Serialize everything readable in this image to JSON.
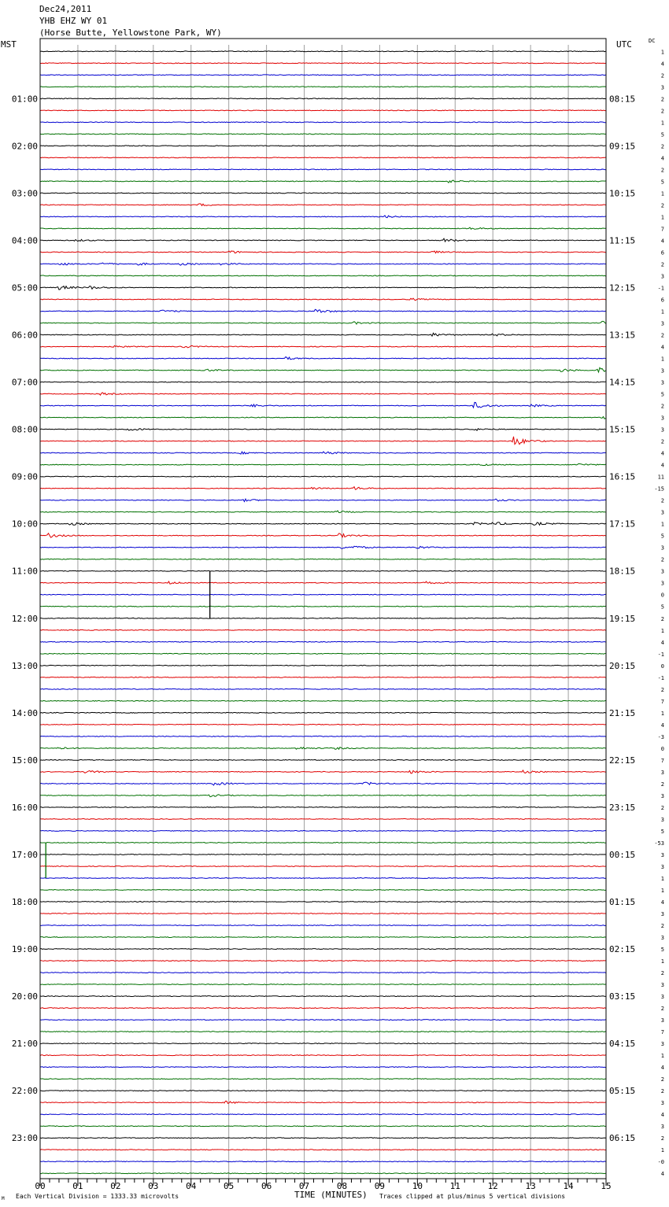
{
  "header": {
    "date": "Dec24,2011",
    "station": "YHB EHZ WY 01",
    "location": "(Horse Butte, Yellowstone Park, WY)"
  },
  "labels": {
    "left_tz": "MST",
    "right_tz": "UTC",
    "dc_label": "DC"
  },
  "footer": {
    "scale": "Each Vertical Division = 1333.33 microvolts",
    "clip_note": "Traces clipped at plus/minus 5 vertical divisions",
    "corner_mark": "M"
  },
  "colors": {
    "trace_cycle": [
      "#000000",
      "#e00000",
      "#0000d0",
      "#007000"
    ],
    "grid": "#a0a0a0",
    "frame": "#000000"
  },
  "chart_data": {
    "type": "line",
    "title": "",
    "xlabel": "TIME (MINUTES)",
    "xlim": [
      0,
      15
    ],
    "x_ticks": [
      "00",
      "01",
      "02",
      "03",
      "04",
      "05",
      "06",
      "07",
      "08",
      "09",
      "10",
      "11",
      "12",
      "13",
      "14",
      "15"
    ],
    "trace_count": 96,
    "minutes_per_trace": 15,
    "left_hour_labels": [
      "01:00",
      "02:00",
      "03:00",
      "04:00",
      "05:00",
      "06:00",
      "07:00",
      "08:00",
      "09:00",
      "10:00",
      "11:00",
      "12:00",
      "13:00",
      "14:00",
      "15:00",
      "16:00",
      "17:00",
      "18:00",
      "19:00",
      "20:00",
      "21:00",
      "22:00",
      "23:00"
    ],
    "right_hour_labels": [
      "08:15",
      "09:15",
      "10:15",
      "11:15",
      "12:15",
      "13:15",
      "14:15",
      "15:15",
      "16:15",
      "17:15",
      "18:15",
      "19:15",
      "20:15",
      "21:15",
      "22:15",
      "23:15",
      "00:15",
      "01:15",
      "02:15",
      "03:15",
      "04:15",
      "05:15",
      "06:15"
    ],
    "dc_offsets": [
      "1",
      "4",
      "2",
      "3",
      "2",
      "2",
      "1",
      "5",
      "2",
      "4",
      "2",
      "5",
      "1",
      "2",
      "1",
      "7",
      "4",
      "6",
      "2",
      "3",
      "-1",
      "6",
      "1",
      "3",
      "2",
      "4",
      "1",
      "3",
      "3",
      "5",
      "2",
      "3",
      "3",
      "2",
      "4",
      "4",
      "11",
      "-15",
      "2",
      "3",
      "1",
      "5",
      "3",
      "2",
      "3",
      "3",
      "0",
      "5",
      "2",
      "1",
      "4",
      "-1",
      "0",
      "-1",
      "2",
      "7",
      "1",
      "4",
      "-3",
      "0",
      "7",
      "3",
      "2",
      "3",
      "2",
      "3",
      "5",
      "-53",
      "3",
      "3",
      "1",
      "1",
      "4",
      "3",
      "2",
      "3",
      "5",
      "1",
      "2",
      "3",
      "3",
      "2",
      "3",
      "7",
      "3",
      "1",
      "4",
      "2",
      "2",
      "3",
      "4",
      "3",
      "2",
      "1",
      "-0",
      "4"
    ],
    "events": [
      {
        "trace": 11,
        "minute": 10.8,
        "amp": 1.6
      },
      {
        "trace": 13,
        "minute": 4.2,
        "amp": 1.3
      },
      {
        "trace": 14,
        "minute": 9.1,
        "amp": 1.3
      },
      {
        "trace": 15,
        "minute": 11.4,
        "amp": 1.3
      },
      {
        "trace": 16,
        "minute": 0.9,
        "amp": 1.3
      },
      {
        "trace": 16,
        "minute": 10.7,
        "amp": 2.0
      },
      {
        "trace": 17,
        "minute": 5.0,
        "amp": 1.5
      },
      {
        "trace": 17,
        "minute": 10.4,
        "amp": 1.3
      },
      {
        "trace": 18,
        "minute": 0.5,
        "amp": 1.6
      },
      {
        "trace": 18,
        "minute": 1.6,
        "amp": 1.6
      },
      {
        "trace": 18,
        "minute": 2.6,
        "amp": 1.3
      },
      {
        "trace": 18,
        "minute": 3.7,
        "amp": 1.3
      },
      {
        "trace": 18,
        "minute": 4.8,
        "amp": 1.3
      },
      {
        "trace": 20,
        "minute": 0.5,
        "amp": 2.5
      },
      {
        "trace": 20,
        "minute": 1.3,
        "amp": 1.8
      },
      {
        "trace": 21,
        "minute": 9.8,
        "amp": 1.3
      },
      {
        "trace": 22,
        "minute": 3.2,
        "amp": 1.3
      },
      {
        "trace": 22,
        "minute": 7.3,
        "amp": 2.8
      },
      {
        "trace": 23,
        "minute": 8.3,
        "amp": 1.3
      },
      {
        "trace": 23,
        "minute": 14.9,
        "amp": 3.0
      },
      {
        "trace": 24,
        "minute": 10.4,
        "amp": 2.0
      },
      {
        "trace": 24,
        "minute": 12.0,
        "amp": 1.5
      },
      {
        "trace": 25,
        "minute": 1.9,
        "amp": 1.3
      },
      {
        "trace": 25,
        "minute": 3.8,
        "amp": 1.5
      },
      {
        "trace": 26,
        "minute": 6.5,
        "amp": 1.5
      },
      {
        "trace": 27,
        "minute": 4.4,
        "amp": 1.3
      },
      {
        "trace": 27,
        "minute": 13.8,
        "amp": 1.8
      },
      {
        "trace": 27,
        "minute": 14.8,
        "amp": 3.5
      },
      {
        "trace": 29,
        "minute": 1.6,
        "amp": 1.3
      },
      {
        "trace": 30,
        "minute": 5.6,
        "amp": 1.5
      },
      {
        "trace": 30,
        "minute": 11.5,
        "amp": 4.0
      },
      {
        "trace": 30,
        "minute": 13.0,
        "amp": 1.3
      },
      {
        "trace": 31,
        "minute": 14.9,
        "amp": 1.5
      },
      {
        "trace": 32,
        "minute": 2.3,
        "amp": 1.8
      },
      {
        "trace": 32,
        "minute": 11.5,
        "amp": 1.3
      },
      {
        "trace": 33,
        "minute": 12.5,
        "amp": 7.0
      },
      {
        "trace": 34,
        "minute": 5.3,
        "amp": 1.3
      },
      {
        "trace": 34,
        "minute": 7.5,
        "amp": 1.8
      },
      {
        "trace": 35,
        "minute": 11.6,
        "amp": 1.3
      },
      {
        "trace": 35,
        "minute": 14.2,
        "amp": 1.5
      },
      {
        "trace": 37,
        "minute": 7.2,
        "amp": 1.3
      },
      {
        "trace": 37,
        "minute": 8.3,
        "amp": 1.8
      },
      {
        "trace": 38,
        "minute": 5.4,
        "amp": 1.3
      },
      {
        "trace": 38,
        "minute": 12.0,
        "amp": 1.5
      },
      {
        "trace": 39,
        "minute": 7.8,
        "amp": 1.5
      },
      {
        "trace": 40,
        "minute": 0.8,
        "amp": 1.6
      },
      {
        "trace": 40,
        "minute": 11.5,
        "amp": 1.5
      },
      {
        "trace": 40,
        "minute": 12.0,
        "amp": 2.0
      },
      {
        "trace": 40,
        "minute": 13.1,
        "amp": 2.0
      },
      {
        "trace": 41,
        "minute": 0.2,
        "amp": 2.5
      },
      {
        "trace": 41,
        "minute": 7.9,
        "amp": 2.5
      },
      {
        "trace": 42,
        "minute": 7.9,
        "amp": 1.8
      },
      {
        "trace": 42,
        "minute": 8.3,
        "amp": 1.5
      },
      {
        "trace": 42,
        "minute": 9.9,
        "amp": 2.0
      },
      {
        "trace": 45,
        "minute": 3.4,
        "amp": 1.3
      },
      {
        "trace": 45,
        "minute": 10.2,
        "amp": 1.3
      },
      {
        "trace": 59,
        "minute": 0.4,
        "amp": 1.6
      },
      {
        "trace": 59,
        "minute": 6.8,
        "amp": 1.5
      },
      {
        "trace": 59,
        "minute": 7.8,
        "amp": 1.3
      },
      {
        "trace": 61,
        "minute": 1.2,
        "amp": 1.5
      },
      {
        "trace": 61,
        "minute": 9.8,
        "amp": 1.8
      },
      {
        "trace": 61,
        "minute": 12.8,
        "amp": 1.5
      },
      {
        "trace": 62,
        "minute": 4.6,
        "amp": 2.0
      },
      {
        "trace": 62,
        "minute": 8.6,
        "amp": 1.8
      },
      {
        "trace": 63,
        "minute": 4.5,
        "amp": 1.3
      },
      {
        "trace": 89,
        "minute": 4.9,
        "amp": 1.5
      }
    ],
    "spikes": [
      {
        "trace": 44,
        "minute": 4.5,
        "to_trace": 48
      },
      {
        "trace": 67,
        "minute": 0.15,
        "to_trace": 70
      }
    ]
  }
}
